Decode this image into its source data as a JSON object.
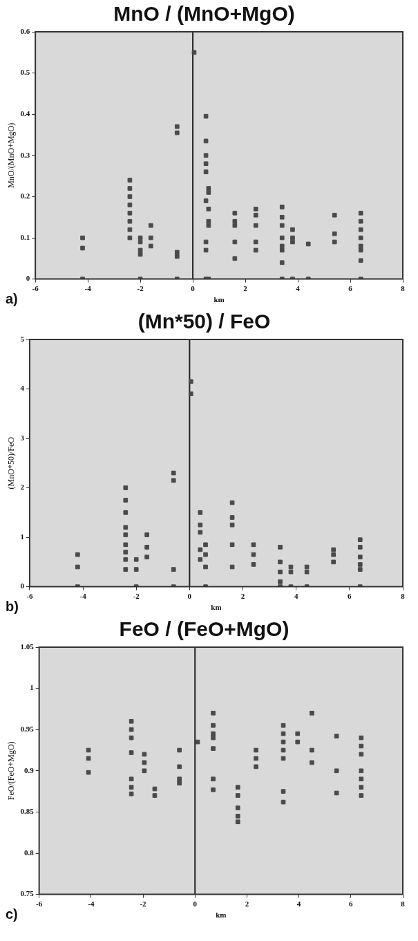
{
  "chart_data": [
    {
      "type": "scatter",
      "title": "MnO / (MnO+MgO)",
      "xlabel": "km",
      "ylabel": "MnO/(MnO+MgO)",
      "annotations": [
        "a)"
      ],
      "marker": "square",
      "color": "#4a4a4a",
      "xlim": [
        -6,
        8
      ],
      "xticks": [
        -6,
        -4,
        -2,
        0,
        2,
        4,
        6,
        8
      ],
      "ylim": [
        0,
        0.6
      ],
      "yticks": [
        0,
        0.1,
        0.2,
        0.3,
        0.4,
        0.5,
        0.6
      ],
      "ref_lines": [
        {
          "axis": "x",
          "value": 0,
          "label": null
        }
      ],
      "x": [
        -4.2,
        -4.2,
        -4.2,
        -2.4,
        -2.4,
        -2.4,
        -2.4,
        -2.4,
        -2.4,
        -2.4,
        -2.4,
        -2.0,
        -2.0,
        -2.0,
        -2.0,
        -2.0,
        -1.6,
        -1.6,
        -1.6,
        -0.6,
        -0.6,
        -0.6,
        -0.6,
        -0.6,
        0.05,
        0.5,
        0.5,
        0.5,
        0.5,
        0.5,
        0.5,
        0.5,
        0.5,
        0.5,
        0.6,
        0.6,
        0.6,
        0.6,
        0.6,
        0.6,
        1.6,
        1.6,
        1.6,
        1.6,
        1.6,
        2.4,
        2.4,
        2.4,
        2.4,
        2.4,
        3.4,
        3.4,
        3.4,
        3.4,
        3.4,
        3.4,
        3.4,
        3.4,
        3.8,
        3.8,
        3.8,
        3.8,
        4.4,
        4.4,
        5.4,
        5.4,
        5.4,
        6.4,
        6.4,
        6.4,
        6.4,
        6.4,
        6.4,
        6.4,
        6.4
      ],
      "values": [
        0.1,
        0.075,
        0,
        0.24,
        0.22,
        0.2,
        0.18,
        0.16,
        0.14,
        0.12,
        0.1,
        0.1,
        0.09,
        0.07,
        0.06,
        0,
        0.13,
        0.1,
        0.08,
        0.37,
        0.355,
        0.065,
        0.055,
        0,
        0.55,
        0.395,
        0.335,
        0.3,
        0.28,
        0.26,
        0.19,
        0.09,
        0.07,
        0,
        0.22,
        0.21,
        0.17,
        0.14,
        0.13,
        0,
        0.16,
        0.14,
        0.13,
        0.09,
        0.05,
        0.17,
        0.155,
        0.13,
        0.09,
        0.07,
        0.175,
        0.15,
        0.13,
        0.1,
        0.08,
        0.07,
        0.04,
        0,
        0.12,
        0.1,
        0.09,
        0,
        0.085,
        0,
        0.155,
        0.11,
        0.09,
        0.16,
        0.14,
        0.12,
        0.1,
        0.08,
        0.07,
        0.045,
        0
      ]
    },
    {
      "type": "scatter",
      "title": "(Mn*50) / FeO",
      "xlabel": "km",
      "ylabel": "(MnO*50)/FeO",
      "annotations": [
        "b)"
      ],
      "marker": "square",
      "color": "#4a4a4a",
      "xlim": [
        -6,
        8
      ],
      "xticks": [
        -6,
        -4,
        -2,
        0,
        2,
        4,
        6,
        8
      ],
      "ylim": [
        0,
        5
      ],
      "yticks": [
        0,
        1,
        2,
        3,
        4,
        5
      ],
      "ref_lines": [
        {
          "axis": "x",
          "value": 0,
          "label": null
        }
      ],
      "x": [
        -4.2,
        -4.2,
        -4.2,
        -2.4,
        -2.4,
        -2.4,
        -2.4,
        -2.4,
        -2.4,
        -2.4,
        -2.4,
        -2.4,
        -2.0,
        -2.0,
        -2.0,
        -1.6,
        -1.6,
        -1.6,
        -0.6,
        -0.6,
        -0.6,
        -0.6,
        0.05,
        0.05,
        0.4,
        0.4,
        0.4,
        0.4,
        0.4,
        0.6,
        0.6,
        0.6,
        0.6,
        1.6,
        1.6,
        1.6,
        1.6,
        1.6,
        2.4,
        2.4,
        2.4,
        3.4,
        3.4,
        3.4,
        3.4,
        3.4,
        3.8,
        3.8,
        3.8,
        4.4,
        4.4,
        4.4,
        5.4,
        5.4,
        5.4,
        6.4,
        6.4,
        6.4,
        6.4,
        6.4,
        6.4
      ],
      "values": [
        0.65,
        0.4,
        0,
        2.0,
        1.75,
        1.5,
        1.2,
        1.05,
        0.85,
        0.7,
        0.55,
        0.35,
        0.55,
        0.35,
        0,
        1.05,
        0.8,
        0.6,
        2.3,
        2.15,
        0.35,
        0,
        4.15,
        3.9,
        1.5,
        1.25,
        1.1,
        0.75,
        0.55,
        0.85,
        0.65,
        0.4,
        0,
        1.7,
        1.4,
        1.25,
        0.85,
        0.4,
        0.85,
        0.65,
        0.45,
        0.8,
        0.5,
        0.3,
        0.1,
        0,
        0.4,
        0.3,
        0,
        0.4,
        0.3,
        0,
        0.75,
        0.65,
        0.5,
        0.95,
        0.8,
        0.6,
        0.45,
        0.35,
        0
      ]
    },
    {
      "type": "scatter",
      "title": "FeO / (FeO+MgO)",
      "xlabel": "km",
      "ylabel": "FeO/(FeO+MgO)",
      "annotations": [
        "c)"
      ],
      "marker": "square",
      "color": "#4a4a4a",
      "xlim": [
        -6,
        8
      ],
      "xticks": [
        -6,
        -4,
        -2,
        0,
        2,
        4,
        6,
        8
      ],
      "ylim": [
        0.75,
        1.05
      ],
      "yticks": [
        0.75,
        0.8,
        0.85,
        0.9,
        0.95,
        1,
        1.05
      ],
      "ref_lines": [
        {
          "axis": "x",
          "value": 0,
          "label": null
        }
      ],
      "x": [
        -4.1,
        -4.1,
        -4.1,
        -2.45,
        -2.45,
        -2.45,
        -2.45,
        -2.45,
        -2.45,
        -2.45,
        -1.95,
        -1.95,
        -1.95,
        -1.55,
        -1.55,
        -0.6,
        -0.6,
        -0.6,
        -0.6,
        0.1,
        0.7,
        0.7,
        0.7,
        0.7,
        0.7,
        0.7,
        0.7,
        1.65,
        1.65,
        1.65,
        1.65,
        1.65,
        2.35,
        2.35,
        2.35,
        3.4,
        3.4,
        3.4,
        3.4,
        3.4,
        3.4,
        3.4,
        3.95,
        3.95,
        4.5,
        4.5,
        4.5,
        5.45,
        5.45,
        5.45,
        6.4,
        6.4,
        6.4,
        6.4,
        6.4,
        6.4,
        6.4
      ],
      "values": [
        0.925,
        0.915,
        0.898,
        0.96,
        0.95,
        0.94,
        0.922,
        0.89,
        0.88,
        0.872,
        0.92,
        0.91,
        0.9,
        0.878,
        0.87,
        0.925,
        0.905,
        0.89,
        0.885,
        0.935,
        0.97,
        0.955,
        0.945,
        0.94,
        0.927,
        0.89,
        0.877,
        0.88,
        0.87,
        0.855,
        0.845,
        0.838,
        0.925,
        0.915,
        0.905,
        0.955,
        0.945,
        0.935,
        0.925,
        0.915,
        0.875,
        0.862,
        0.945,
        0.935,
        0.97,
        0.925,
        0.91,
        0.942,
        0.9,
        0.873,
        0.94,
        0.93,
        0.92,
        0.9,
        0.89,
        0.88,
        0.87
      ]
    }
  ]
}
